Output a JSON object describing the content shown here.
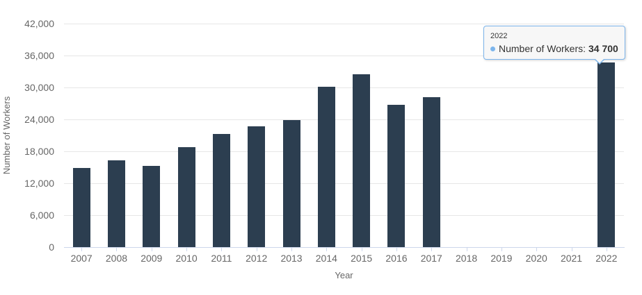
{
  "chart_data": {
    "type": "bar",
    "title": "",
    "xlabel": "Year",
    "ylabel": "Number of Workers",
    "categories": [
      "2007",
      "2008",
      "2009",
      "2010",
      "2011",
      "2012",
      "2013",
      "2014",
      "2015",
      "2016",
      "2017",
      "2018",
      "2019",
      "2020",
      "2021",
      "2022"
    ],
    "series": [
      {
        "name": "Number of Workers",
        "values": [
          14900,
          16300,
          15300,
          18800,
          21300,
          22700,
          23900,
          30100,
          32500,
          26700,
          28200,
          null,
          null,
          null,
          null,
          34700
        ]
      }
    ],
    "ylim": [
      0,
      42000
    ],
    "yticks": [
      0,
      6000,
      12000,
      18000,
      24000,
      30000,
      36000,
      42000
    ],
    "ytick_labels": [
      "0",
      "6,000",
      "12,000",
      "18,000",
      "24,000",
      "30,000",
      "36,000",
      "42,000"
    ],
    "grid": true,
    "legend_position": "none",
    "bar_color": "#2c3e50"
  },
  "tooltip": {
    "header": "2022",
    "series_label": "Number of Workers",
    "separator": ":",
    "value": "34 700",
    "marker_color": "#7cb5ec",
    "border_color": "#7cb5ec",
    "background_color": "#f7f7f7",
    "text_color": "#333333"
  },
  "colors": {
    "background": "#ffffff",
    "gridline": "#e6e6e6",
    "axis_line": "#ccd6eb",
    "axis_label": "#666666",
    "axis_title": "#666666"
  }
}
